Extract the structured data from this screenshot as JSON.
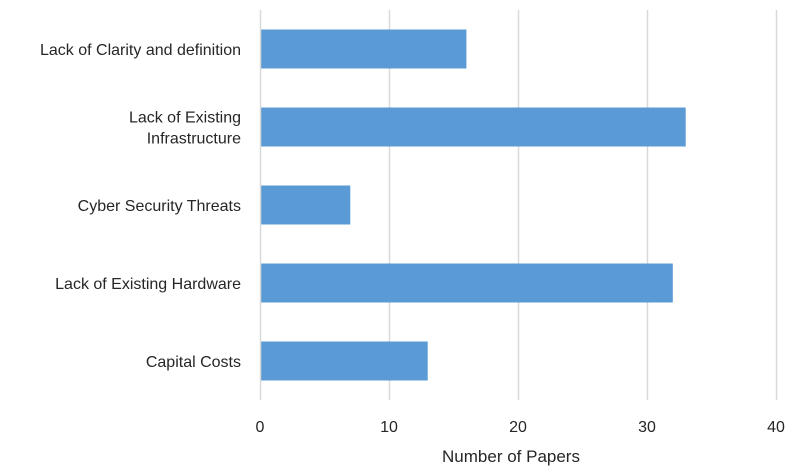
{
  "chart_data": {
    "type": "bar",
    "orientation": "horizontal",
    "categories": [
      [
        "Lack of Clarity and definition"
      ],
      [
        "Lack of Existing",
        "Infrastructure"
      ],
      [
        "Cyber Security Threats"
      ],
      [
        "Lack of Existing Hardware"
      ],
      [
        "Capital Costs"
      ]
    ],
    "values": [
      16,
      33,
      7,
      32,
      13
    ],
    "xlabel": "Number of Papers",
    "xlim": [
      0,
      40
    ],
    "xticks": [
      0,
      10,
      20,
      30,
      40
    ],
    "grid": "vertical",
    "bar_color": "#5B9BD5",
    "grid_color": "#D9D9D9"
  }
}
